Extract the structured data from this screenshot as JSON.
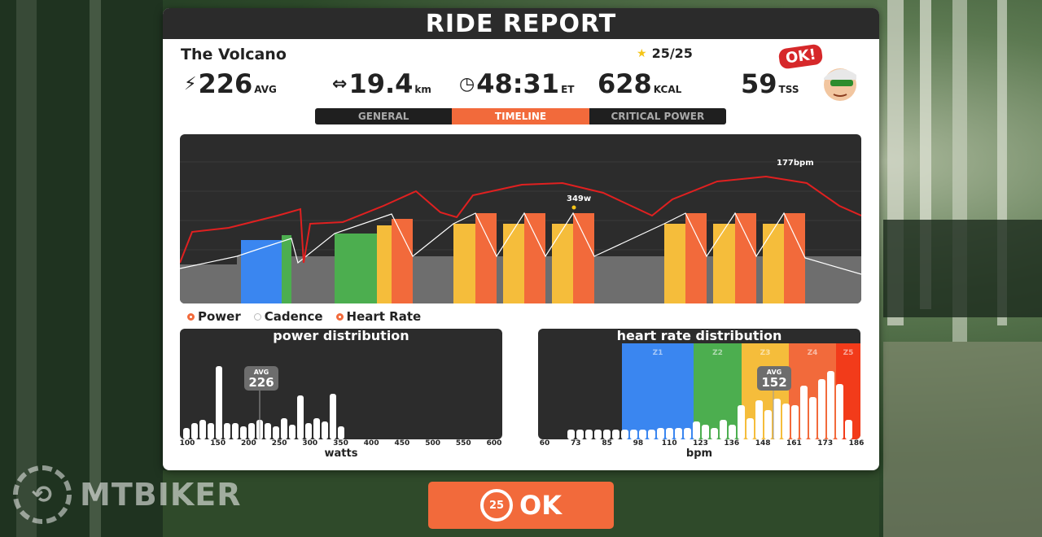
{
  "header": {
    "title": "RIDE REPORT"
  },
  "ride": {
    "route_name": "The Volcano",
    "stars": "25/25",
    "power": {
      "value": "226",
      "unit": "AVG"
    },
    "distance": {
      "value": "19.4",
      "unit": "km"
    },
    "time": {
      "value": "48:31",
      "unit": "ET"
    },
    "calories": {
      "value": "628",
      "unit": "KCAL"
    },
    "tss": {
      "value": "59",
      "unit": "TSS"
    },
    "badge": "OK!"
  },
  "tabs": [
    {
      "label": "GENERAL",
      "active": false
    },
    {
      "label": "TIMELINE",
      "active": true
    },
    {
      "label": "CRITICAL POWER",
      "active": false
    }
  ],
  "timeline": {
    "max_hr_label": "177bpm",
    "max_power_label": "349w"
  },
  "legend": [
    {
      "label": "Power",
      "color": "#f26a3b"
    },
    {
      "label": "Cadence",
      "color": "#ffffff"
    },
    {
      "label": "Heart Rate",
      "color": "#f26a3b"
    }
  ],
  "power_distribution": {
    "title": "power distribution",
    "xlabel": "watts",
    "ticks": [
      "100",
      "150",
      "200",
      "250",
      "300",
      "350",
      "400",
      "450",
      "500",
      "550",
      "600"
    ],
    "avg_label": "AVG",
    "avg_value": "226"
  },
  "hr_distribution": {
    "title": "heart rate distribution",
    "xlabel": "bpm",
    "ticks": [
      "60",
      "73",
      "85",
      "98",
      "110",
      "123",
      "136",
      "148",
      "161",
      "173",
      "186"
    ],
    "zones": [
      "Z1",
      "Z2",
      "Z3",
      "Z4",
      "Z5"
    ],
    "avg_label": "AVG",
    "avg_value": "152"
  },
  "ok_button": {
    "label": "OK",
    "ring": "25"
  },
  "watermark": {
    "text": "MTBIKER"
  },
  "colors": {
    "accent": "#f26a3b",
    "hr_line": "#e02020",
    "z1": "#3a86f0",
    "z2": "#4cae4f",
    "z3": "#f5bd3b",
    "z4": "#f26a3b",
    "z5": "#f23b1a"
  }
}
